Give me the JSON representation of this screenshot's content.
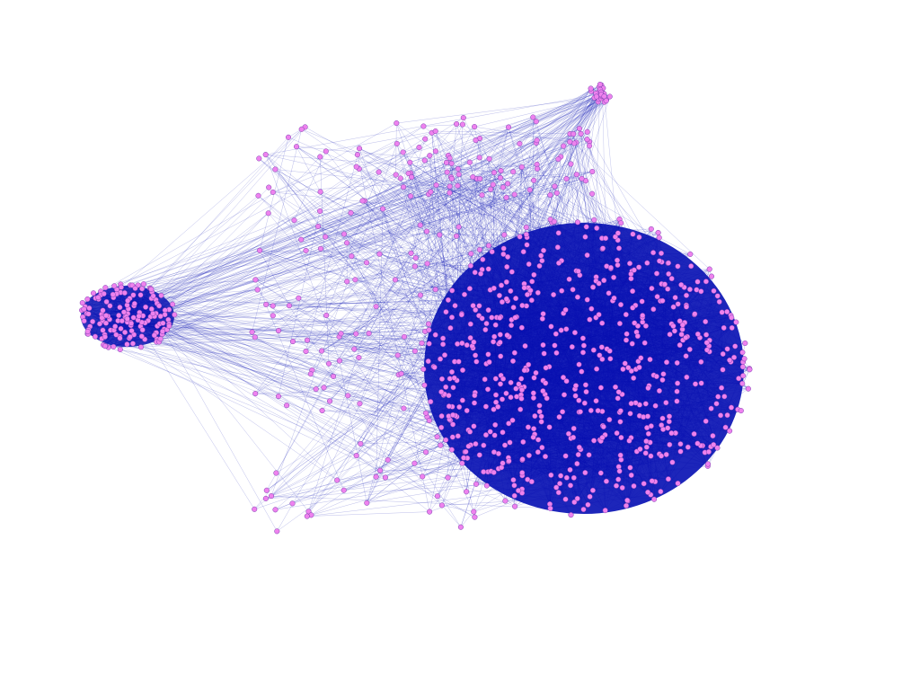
{
  "graph": {
    "type": "network",
    "labels_shown": false,
    "node_color": "#ee82ee",
    "node_stroke": "#7a3fb0",
    "edge_color": "#0a14b4",
    "background": "#ffffff",
    "clusters": [
      {
        "id": "main-cluster",
        "density": "very-high"
      },
      {
        "id": "left-cluster",
        "density": "high"
      },
      {
        "id": "top-right-cluster",
        "density": "medium"
      },
      {
        "id": "bridge-region",
        "density": "low"
      }
    ]
  }
}
